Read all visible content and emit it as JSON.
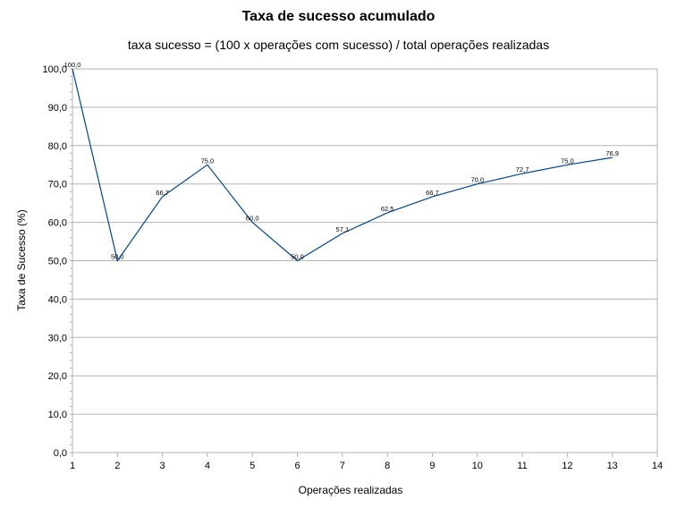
{
  "chart_data": {
    "type": "line",
    "title": "Taxa de sucesso acumulado",
    "subtitle": "taxa sucesso = (100 x operações com sucesso) / total operações realizadas",
    "xlabel": "Operações realizadas",
    "ylabel": "Taxa de Sucesso (%)",
    "xlim": [
      1,
      14
    ],
    "ylim": [
      0,
      100
    ],
    "x_ticks": [
      "1",
      "2",
      "3",
      "4",
      "5",
      "6",
      "7",
      "8",
      "9",
      "10",
      "11",
      "12",
      "13",
      "14"
    ],
    "y_ticks": [
      "0,0",
      "10,0",
      "20,0",
      "30,0",
      "40,0",
      "50,0",
      "60,0",
      "70,0",
      "80,0",
      "90,0",
      "100,0"
    ],
    "grid": true,
    "line_color": "#004586",
    "series": [
      {
        "x": [
          1,
          2,
          3,
          4,
          5,
          6,
          7,
          8,
          9,
          10,
          11,
          12,
          13
        ],
        "values": [
          100.0,
          50.0,
          66.7,
          75.0,
          60.0,
          50.0,
          57.1,
          62.5,
          66.7,
          70.0,
          72.7,
          75.0,
          76.9
        ],
        "labels": [
          "100,0",
          "50,0",
          "66,7",
          "75,0",
          "60,0",
          "50,0",
          "57,1",
          "62,5",
          "66,7",
          "70,0",
          "72,7",
          "75,0",
          "76,9"
        ]
      }
    ]
  }
}
